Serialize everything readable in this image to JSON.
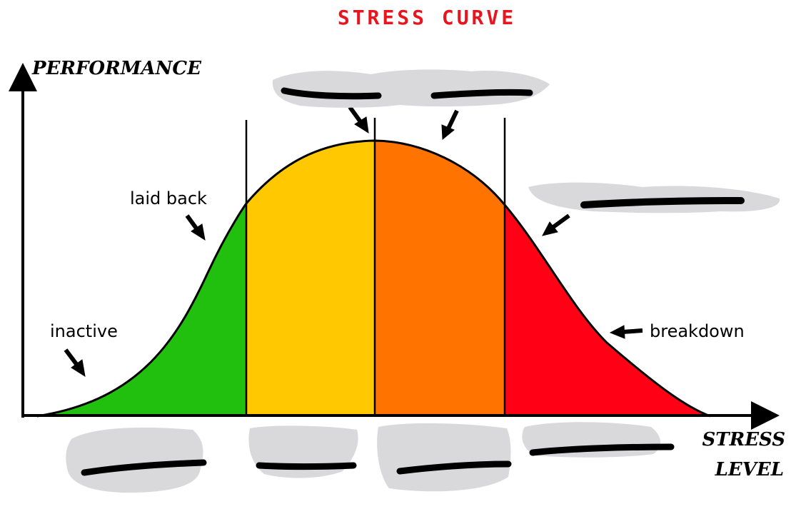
{
  "title": "STRESS CURVE",
  "y_axis_label": "PERFORMANCE",
  "x_axis_label_line1": "STRESS",
  "x_axis_label_line2": "LEVEL",
  "stage_labels": {
    "inactive": "inactive",
    "laid_back": "laid back",
    "breakdown": "breakdown"
  },
  "zones": [
    {
      "color": "#22c00e"
    },
    {
      "color": "#ffc800"
    },
    {
      "color": "#ff7300"
    },
    {
      "color": "#ff0014"
    }
  ],
  "colors": {
    "title": "#e8141e",
    "outline": "#000000",
    "redaction_scribble": "#d9d9dc"
  },
  "icons": {
    "arrow": "black-pointer-arrow",
    "redaction": "scribbled-out-text"
  }
}
